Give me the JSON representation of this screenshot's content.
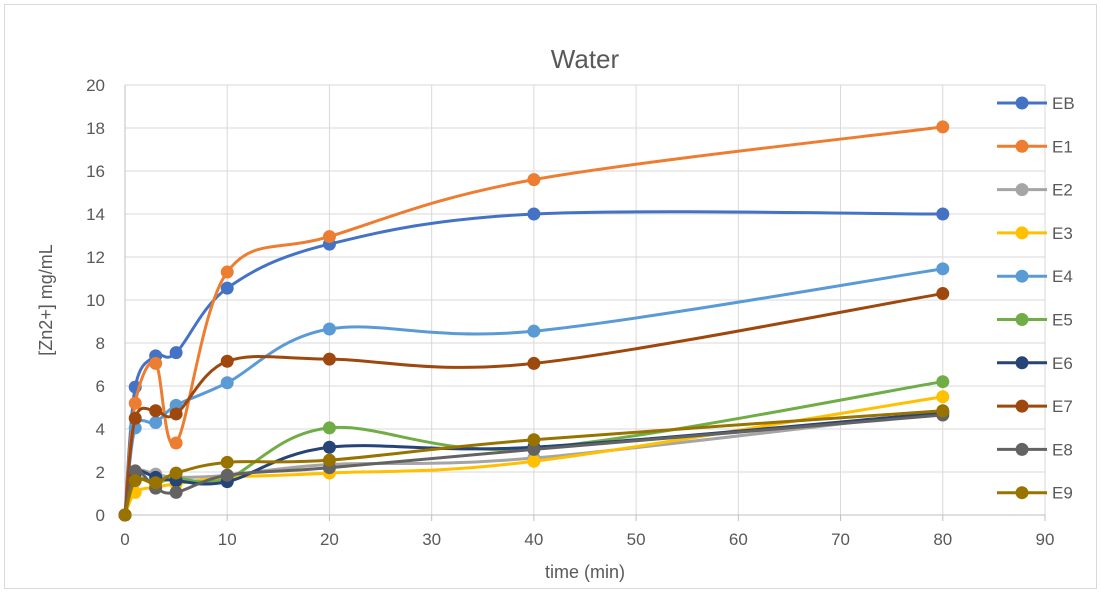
{
  "chart_data": {
    "type": "line",
    "title": "Water",
    "xlabel": "time (min)",
    "ylabel": "[Zn2+] mg/mL",
    "xlim": [
      0,
      90
    ],
    "ylim": [
      0,
      20
    ],
    "xticks": [
      0,
      10,
      20,
      30,
      40,
      50,
      60,
      70,
      80,
      90
    ],
    "yticks": [
      0,
      2,
      4,
      6,
      8,
      10,
      12,
      14,
      16,
      18,
      20
    ],
    "grid": true,
    "smooth": true,
    "legend_position": "right",
    "x": [
      0,
      1,
      3,
      5,
      10,
      20,
      40,
      80
    ],
    "series": [
      {
        "name": "EB",
        "color": "#4472C4",
        "values": [
          0,
          5.95,
          7.4,
          7.55,
          10.55,
          12.6,
          14.0,
          14.0
        ]
      },
      {
        "name": "E1",
        "color": "#ED7D31",
        "values": [
          0,
          5.2,
          7.05,
          3.35,
          11.3,
          12.95,
          15.6,
          18.05
        ]
      },
      {
        "name": "E2",
        "color": "#A5A5A5",
        "values": [
          0,
          1.95,
          1.9,
          1.75,
          1.85,
          2.35,
          2.65,
          4.8
        ]
      },
      {
        "name": "E3",
        "color": "#FFC000",
        "values": [
          0,
          1.05,
          1.3,
          1.45,
          1.75,
          1.95,
          2.5,
          5.5
        ]
      },
      {
        "name": "E4",
        "color": "#5B9BD5",
        "values": [
          0,
          4.05,
          4.3,
          5.1,
          6.15,
          8.65,
          8.55,
          11.45
        ]
      },
      {
        "name": "E5",
        "color": "#70AD47",
        "values": [
          0,
          1.65,
          1.5,
          1.7,
          1.7,
          4.05,
          3.1,
          6.2
        ]
      },
      {
        "name": "E6",
        "color": "#264478",
        "values": [
          0,
          1.95,
          1.75,
          1.6,
          1.55,
          3.15,
          3.15,
          4.75
        ]
      },
      {
        "name": "E7",
        "color": "#9E480E",
        "values": [
          0,
          4.5,
          4.85,
          4.7,
          7.15,
          7.25,
          7.05,
          10.3
        ]
      },
      {
        "name": "E8",
        "color": "#636363",
        "values": [
          0,
          2.05,
          1.25,
          1.05,
          1.85,
          2.2,
          3.05,
          4.65
        ]
      },
      {
        "name": "E9",
        "color": "#997300",
        "values": [
          0,
          1.6,
          1.5,
          1.95,
          2.45,
          2.55,
          3.5,
          4.85
        ]
      }
    ]
  }
}
